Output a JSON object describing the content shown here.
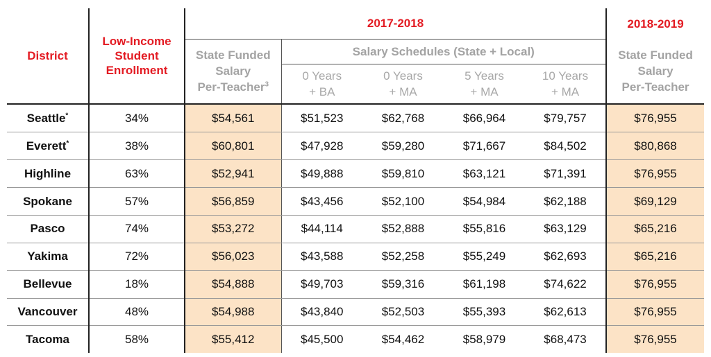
{
  "headers": {
    "district": "District",
    "low_income": "Low-Income Student Enrollment",
    "year_2017": "2017-2018",
    "year_2018": "2018-2019",
    "state_funded_2017_line1": "State Funded",
    "state_funded_2017_line2": "Salary",
    "state_funded_2017_line3": "Per-Teacher",
    "state_funded_2017_sup": "3",
    "salary_schedules": "Salary Schedules (State + Local)",
    "col_0ba_line1": "0 Years",
    "col_0ba_line2": "+ BA",
    "col_0ma_line1": "0 Years",
    "col_0ma_line2": "+ MA",
    "col_5ma_line1": "5 Years",
    "col_5ma_line2": "+ MA",
    "col_10ma_line1": "10 Years",
    "col_10ma_line2": "+ MA",
    "state_funded_2018_line1": "State Funded",
    "state_funded_2018_line2": "Salary",
    "state_funded_2018_line3": "Per-Teacher"
  },
  "rows": [
    {
      "district": "Seattle",
      "mark": "*",
      "low_income": "34%",
      "sf2017": "$54,561",
      "ba0": "$51,523",
      "ma0": "$62,768",
      "ma5": "$66,964",
      "ma10": "$79,757",
      "sf2018": "$76,955"
    },
    {
      "district": "Everett",
      "mark": "*",
      "low_income": "38%",
      "sf2017": "$60,801",
      "ba0": "$47,928",
      "ma0": "$59,280",
      "ma5": "$71,667",
      "ma10": "$84,502",
      "sf2018": "$80,868"
    },
    {
      "district": "Highline",
      "mark": "",
      "low_income": "63%",
      "sf2017": "$52,941",
      "ba0": "$49,888",
      "ma0": "$59,810",
      "ma5": "$63,121",
      "ma10": "$71,391",
      "sf2018": "$76,955"
    },
    {
      "district": "Spokane",
      "mark": "",
      "low_income": "57%",
      "sf2017": "$56,859",
      "ba0": "$43,456",
      "ma0": "$52,100",
      "ma5": "$54,984",
      "ma10": "$62,188",
      "sf2018": "$69,129"
    },
    {
      "district": "Pasco",
      "mark": "",
      "low_income": "74%",
      "sf2017": "$53,272",
      "ba0": "$44,114",
      "ma0": "$52,888",
      "ma5": "$55,816",
      "ma10": "$63,129",
      "sf2018": "$65,216"
    },
    {
      "district": "Yakima",
      "mark": "",
      "low_income": "72%",
      "sf2017": "$56,023",
      "ba0": "$43,588",
      "ma0": "$52,258",
      "ma5": "$55,249",
      "ma10": "$62,693",
      "sf2018": "$65,216"
    },
    {
      "district": "Bellevue",
      "mark": "",
      "low_income": "18%",
      "sf2017": "$54,888",
      "ba0": "$49,703",
      "ma0": "$59,316",
      "ma5": "$61,198",
      "ma10": "$74,622",
      "sf2018": "$76,955"
    },
    {
      "district": "Vancouver",
      "mark": "",
      "low_income": "48%",
      "sf2017": "$54,988",
      "ba0": "$43,840",
      "ma0": "$52,503",
      "ma5": "$55,393",
      "ma10": "$62,613",
      "sf2018": "$76,955"
    },
    {
      "district": "Tacoma",
      "mark": "",
      "low_income": "58%",
      "sf2017": "$55,412",
      "ba0": "$45,500",
      "ma0": "$54,462",
      "ma5": "$58,979",
      "ma10": "$68,473",
      "sf2018": "$76,955"
    }
  ],
  "colors": {
    "header_red": "#e31b23",
    "header_gray": "#a3a3a3",
    "highlight": "#fce3c6"
  }
}
